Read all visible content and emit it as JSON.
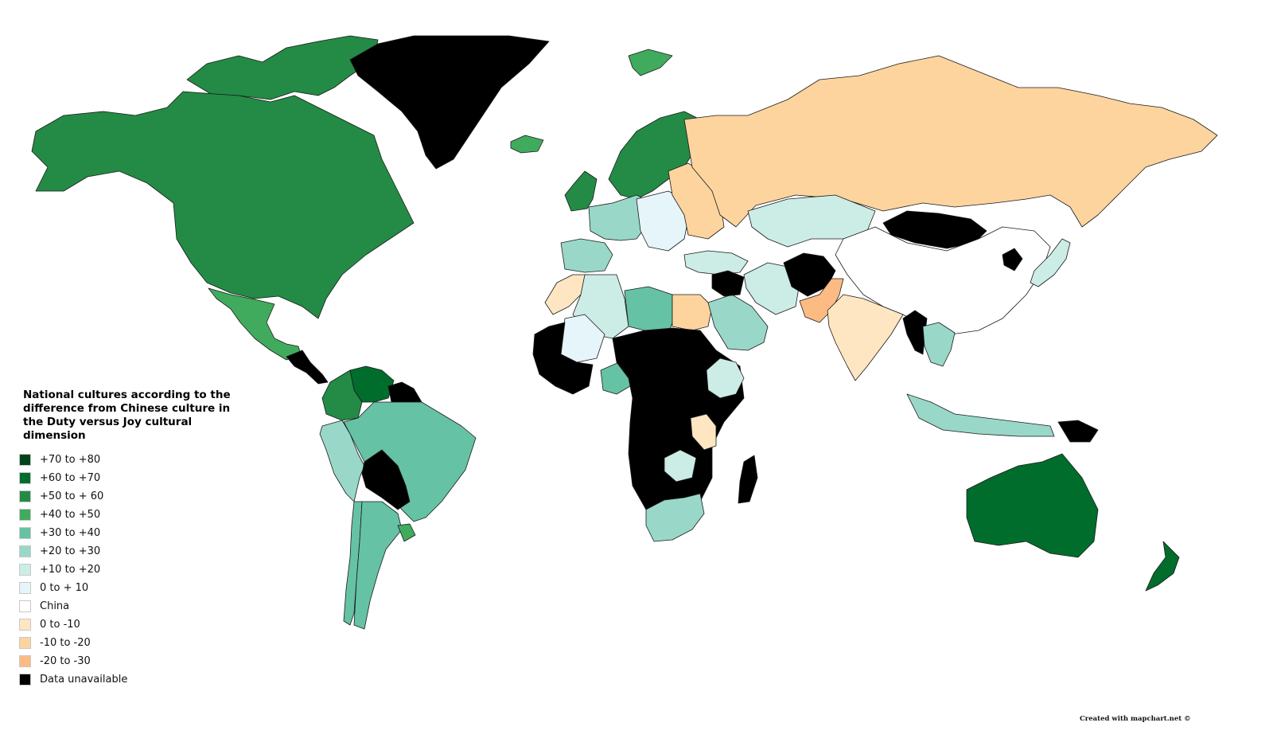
{
  "legend": {
    "title": "National cultures according to the difference from Chinese culture in the Duty versus Joy cultural dimension",
    "items": [
      {
        "label": "+70 to +80",
        "color": "#00441b"
      },
      {
        "label": "+60 to +70",
        "color": "#006d2c"
      },
      {
        "label": "+50 to + 60",
        "color": "#238b45"
      },
      {
        "label": "+40 to +50",
        "color": "#41ab5d"
      },
      {
        "label": "+30 to +40",
        "color": "#66c2a4"
      },
      {
        "label": "+20 to +30",
        "color": "#99d8c9"
      },
      {
        "label": "+10 to +20",
        "color": "#ccece6"
      },
      {
        "label": "0 to + 10",
        "color": "#e5f5f9"
      },
      {
        "label": "China",
        "color": "#ffffff"
      },
      {
        "label": "0 to -10",
        "color": "#fee6c2"
      },
      {
        "label": "-10 to -20",
        "color": "#fdd49e"
      },
      {
        "label": "-20 to -30",
        "color": "#fdbb84"
      },
      {
        "label": "Data unavailable",
        "color": "#000000"
      }
    ]
  },
  "regions": [
    {
      "name": "canada-arctic",
      "category": "+50 to + 60"
    },
    {
      "name": "alaska-usa-canada",
      "category": "+50 to + 60"
    },
    {
      "name": "greenland",
      "category": "Data unavailable"
    },
    {
      "name": "iceland",
      "category": "+40 to +50"
    },
    {
      "name": "svalbard",
      "category": "+40 to +50"
    },
    {
      "name": "mexico",
      "category": "+40 to +50"
    },
    {
      "name": "central-america",
      "category": "Data unavailable"
    },
    {
      "name": "venezuela",
      "category": "+60 to +70"
    },
    {
      "name": "colombia",
      "category": "+50 to + 60"
    },
    {
      "name": "guianas",
      "category": "Data unavailable"
    },
    {
      "name": "peru-ecuador",
      "category": "+20 to +30"
    },
    {
      "name": "brazil",
      "category": "+30 to +40"
    },
    {
      "name": "bolivia",
      "category": "Data unavailable"
    },
    {
      "name": "chile",
      "category": "+30 to +40"
    },
    {
      "name": "argentina",
      "category": "+30 to +40"
    },
    {
      "name": "uruguay",
      "category": "+40 to +50"
    },
    {
      "name": "scandinavia",
      "category": "+50 to + 60"
    },
    {
      "name": "uk-ireland",
      "category": "+50 to + 60"
    },
    {
      "name": "iberia",
      "category": "+20 to +30"
    },
    {
      "name": "france-germany",
      "category": "+20 to +30"
    },
    {
      "name": "central-europe",
      "category": "0 to + 10"
    },
    {
      "name": "eastern-europe",
      "category": "-10 to -20"
    },
    {
      "name": "russia",
      "category": "-10 to -20"
    },
    {
      "name": "turkey",
      "category": "+10 to +20"
    },
    {
      "name": "central-asia",
      "category": "+10 to +20"
    },
    {
      "name": "iran",
      "category": "+10 to +20"
    },
    {
      "name": "mongolia",
      "category": "Data unavailable"
    },
    {
      "name": "afghanistan",
      "category": "Data unavailable"
    },
    {
      "name": "pakistan",
      "category": "-20 to -30"
    },
    {
      "name": "india",
      "category": "0 to -10"
    },
    {
      "name": "china",
      "category": "China"
    },
    {
      "name": "north-korea",
      "category": "Data unavailable"
    },
    {
      "name": "japan",
      "category": "+10 to +20"
    },
    {
      "name": "myanmar",
      "category": "Data unavailable"
    },
    {
      "name": "thailand-vietnam",
      "category": "+20 to +30"
    },
    {
      "name": "indonesia",
      "category": "+20 to +30"
    },
    {
      "name": "papua-new-guinea",
      "category": "Data unavailable"
    },
    {
      "name": "australia",
      "category": "+60 to +70"
    },
    {
      "name": "new-zealand",
      "category": "+60 to +70"
    },
    {
      "name": "morocco",
      "category": "0 to -10"
    },
    {
      "name": "algeria",
      "category": "+10 to +20"
    },
    {
      "name": "libya",
      "category": "+30 to +40"
    },
    {
      "name": "egypt",
      "category": "-10 to -20"
    },
    {
      "name": "mali",
      "category": "0 to + 10"
    },
    {
      "name": "west-africa",
      "category": "Data unavailable"
    },
    {
      "name": "nigeria",
      "category": "+30 to +40"
    },
    {
      "name": "central-africa",
      "category": "Data unavailable"
    },
    {
      "name": "ethiopia",
      "category": "+10 to +20"
    },
    {
      "name": "tanzania",
      "category": "0 to -10"
    },
    {
      "name": "zambia",
      "category": "+10 to +20"
    },
    {
      "name": "south-africa",
      "category": "+20 to +30"
    },
    {
      "name": "madagascar",
      "category": "Data unavailable"
    },
    {
      "name": "saudi-arabia",
      "category": "+20 to +30"
    },
    {
      "name": "iraq-syria",
      "category": "Data unavailable"
    }
  ],
  "credit": "Created with mapchart.net ©"
}
